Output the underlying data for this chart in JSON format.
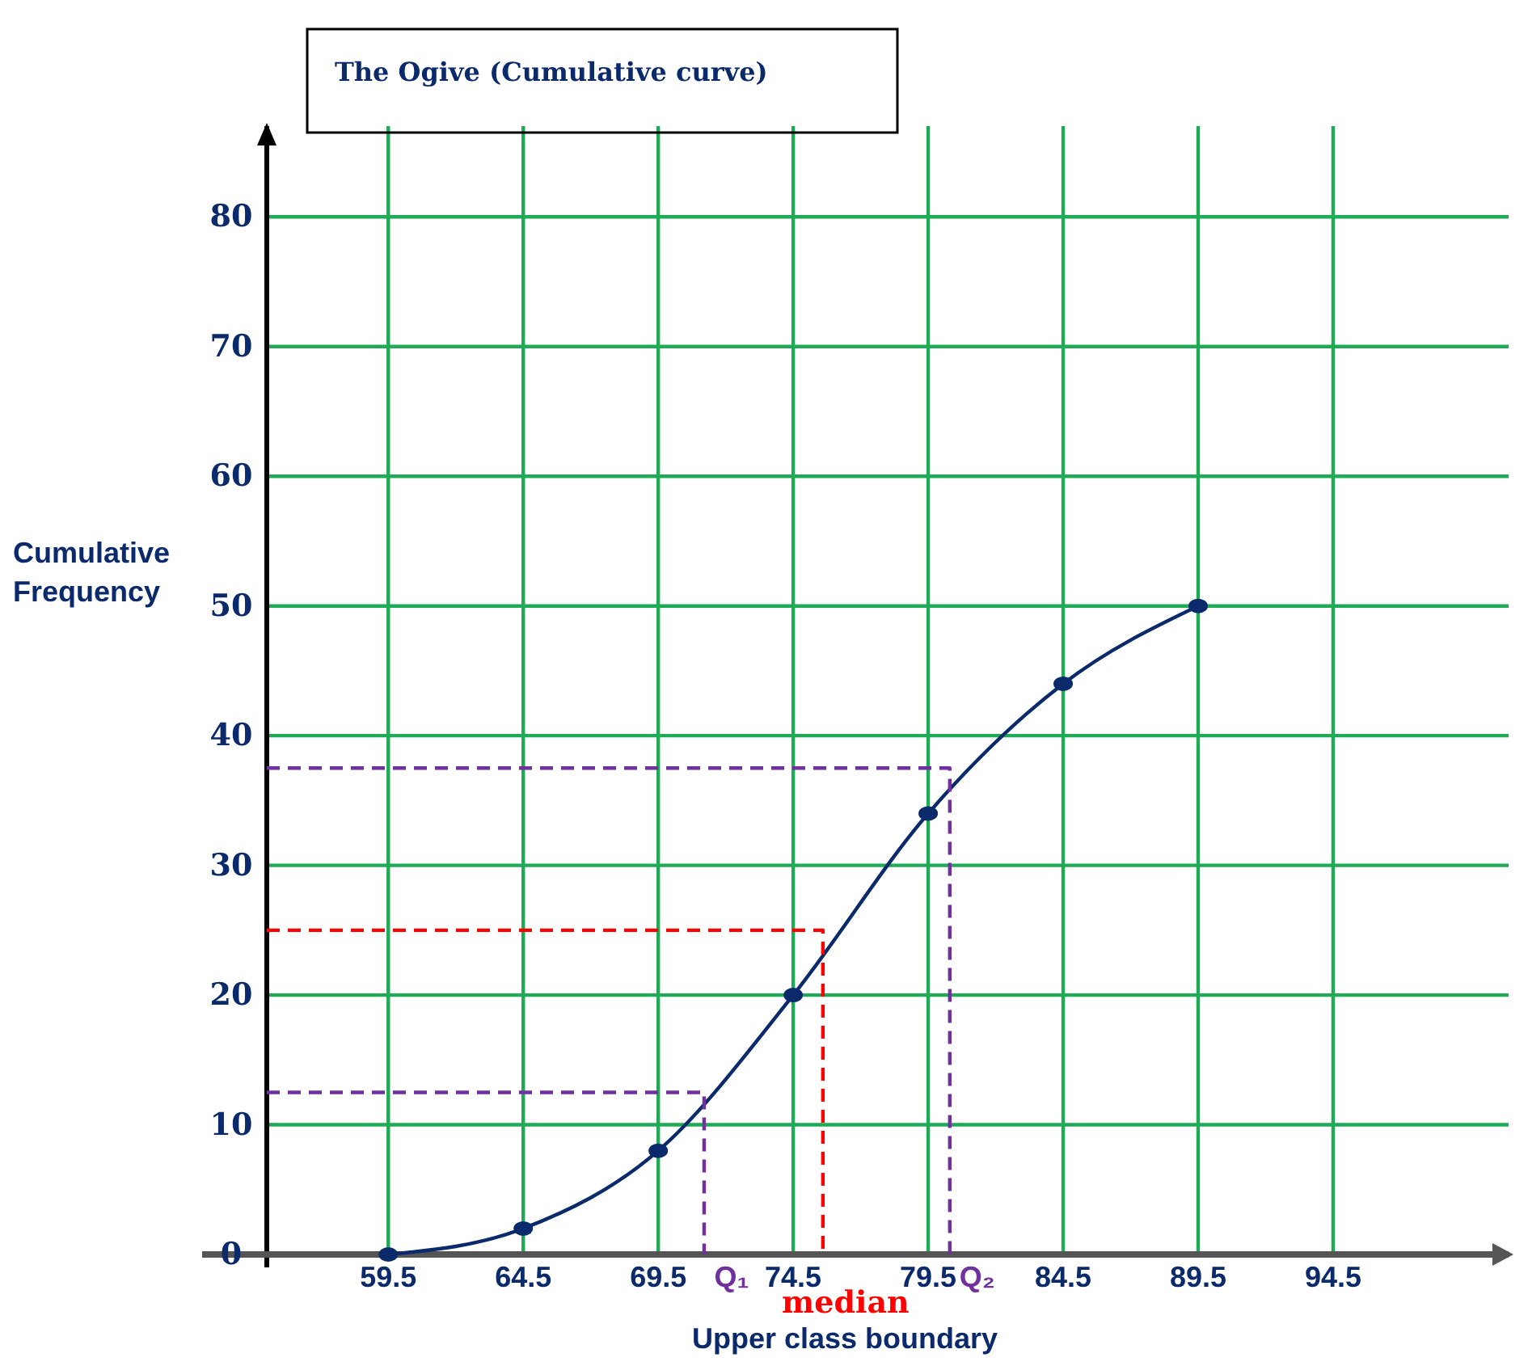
{
  "chart_data": {
    "type": "line",
    "title": "The Ogive (Cumulative curve)",
    "xlabel": "Upper class boundary",
    "ylabel": "Cumulative Frequency",
    "x": [
      59.5,
      64.5,
      69.5,
      74.5,
      79.5,
      84.5,
      89.5
    ],
    "series": [
      {
        "color": "#0b2a6b",
        "values": [
          0,
          2,
          8,
          20,
          34,
          44,
          50
        ],
        "marker": "circle",
        "line_style": "solid"
      },
      {
        "type": "line",
        "color": "#7030a0",
        "x": [
          55,
          71.2,
          71.2
        ],
        "values": [
          12.5,
          12.5,
          0
        ],
        "marker": "none",
        "line_style": "dashed"
      },
      {
        "type": "line",
        "color": "#ff0000",
        "x": [
          55,
          75.6,
          75.6
        ],
        "values": [
          25,
          25,
          0
        ],
        "marker": "none",
        "line_style": "dashed"
      },
      {
        "type": "line",
        "color": "#7030a0",
        "x": [
          55,
          80.3,
          80.3
        ],
        "values": [
          37.5,
          37.5,
          0
        ],
        "marker": "none",
        "line_style": "dashed"
      }
    ],
    "annotations": [
      {
        "text": "Q₁",
        "x": 71.2,
        "y": 0
      },
      {
        "text": "median",
        "x": 75.6,
        "y": 0
      },
      {
        "text": "Q₂",
        "x": 80.3,
        "y": 0
      }
    ],
    "xlim": [
      55,
      101
    ],
    "xticks": [
      59.5,
      64.5,
      69.5,
      74.5,
      79.5,
      84.5,
      89.5,
      94.5
    ],
    "ylim": [
      0,
      87
    ],
    "yticks": [
      0,
      10,
      20,
      30,
      40,
      50,
      60,
      70,
      80
    ],
    "grid": true
  }
}
